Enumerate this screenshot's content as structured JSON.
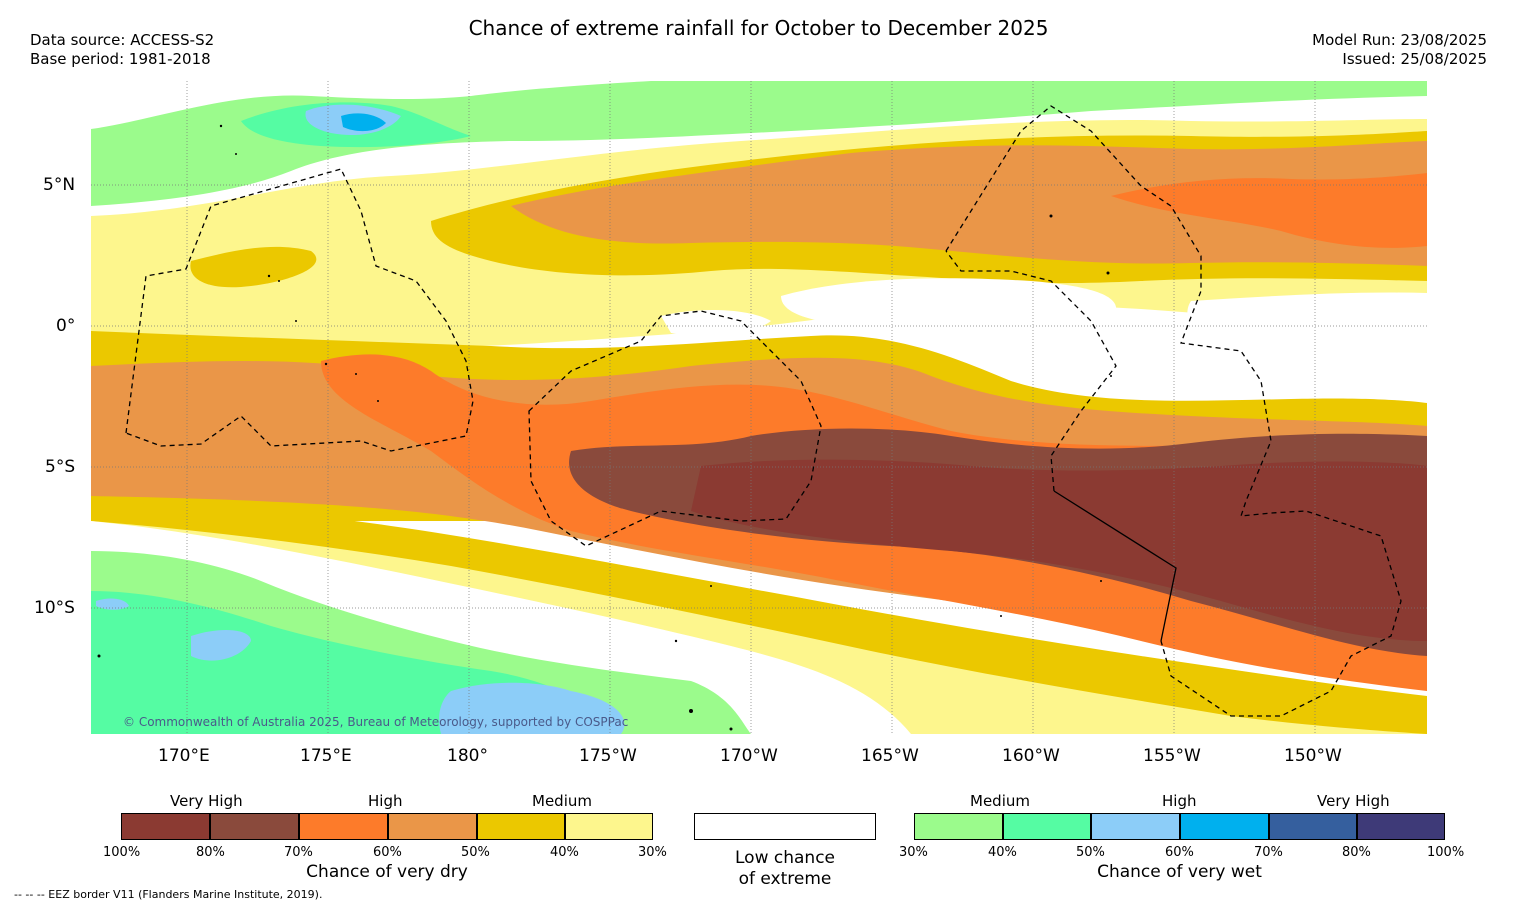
{
  "title": "Chance of extreme rainfall for October to December 2025",
  "meta_left": {
    "source": "Data source: ACCESS-S2",
    "base": "Base period: 1981-2018"
  },
  "meta_right": {
    "run": "Model Run: 23/08/2025",
    "issued": "Issued: 25/08/2025"
  },
  "map": {
    "lat_labels": [
      "5°N",
      "0°",
      "5°S",
      "10°S"
    ],
    "lon_labels": [
      "170°E",
      "175°E",
      "180°",
      "175°W",
      "170°W",
      "165°W",
      "160°W",
      "155°W",
      "150°W"
    ],
    "copyright": "© Commonwealth of Australia 2025, Bureau of Meteorology, supported by COSPPac"
  },
  "legend": {
    "dry": {
      "groups": [
        "Very High",
        "High",
        "Medium"
      ],
      "ticks": [
        "100%",
        "80%",
        "70%",
        "60%",
        "50%",
        "40%",
        "30%"
      ],
      "colors": [
        "#8b3a32",
        "#8a4a3c",
        "#fd7b2a",
        "#ea9648",
        "#ebc800",
        "#fdf68d"
      ],
      "caption": "Chance of very dry"
    },
    "low": {
      "line1": "Low chance",
      "line2": "of extreme"
    },
    "wet": {
      "groups": [
        "Medium",
        "High",
        "Very High"
      ],
      "ticks": [
        "30%",
        "40%",
        "50%",
        "60%",
        "70%",
        "80%",
        "100%"
      ],
      "colors": [
        "#9bfb8c",
        "#55fca3",
        "#8ccdf8",
        "#00b0ee",
        "#355f9e",
        "#3e3a78"
      ],
      "caption": "Chance of very wet"
    }
  },
  "footnote": "-- -- -- EEZ border V11 (Flanders Marine Institute, 2019)."
}
